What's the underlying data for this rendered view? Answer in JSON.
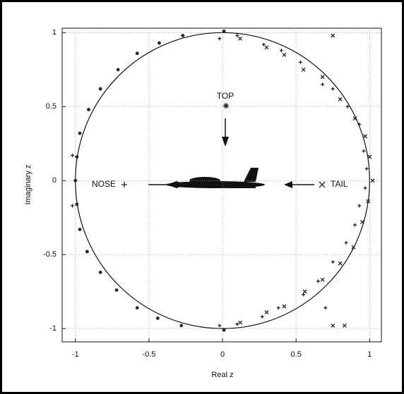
{
  "chart_data": {
    "type": "scatter",
    "x_label": "Real z",
    "y_label": "Imaginary z",
    "xlim": [
      -1.09,
      1.08
    ],
    "ylim": [
      -1.09,
      1.03
    ],
    "xticks": [
      -1,
      -0.5,
      0,
      0.5,
      1
    ],
    "yticks": [
      -1,
      -0.5,
      0,
      0.5,
      1
    ],
    "grid": true,
    "circle": {
      "center": [
        0,
        0
      ],
      "radius": 1
    },
    "series": [
      {
        "name": "NOSE",
        "marker": "plus",
        "color": "#222222",
        "x": [
          -0.02,
          0.1,
          0.28,
          0.4,
          0.53,
          0.68,
          0.75,
          0.85,
          0.93,
          0.96,
          0.98,
          0.97,
          0.93,
          0.9,
          0.84,
          0.75,
          0.65,
          0.55,
          0.38,
          0.27,
          0.1,
          -0.02,
          -1.02,
          -1.02,
          0.7
        ],
        "y": [
          0.96,
          0.98,
          0.92,
          0.88,
          0.8,
          0.65,
          0.62,
          0.5,
          0.38,
          0.2,
          0.08,
          -0.05,
          -0.17,
          -0.3,
          -0.42,
          -0.55,
          -0.68,
          -0.77,
          -0.86,
          -0.92,
          -0.97,
          -0.98,
          0.17,
          -0.17,
          -0.86
        ]
      },
      {
        "name": "TAIL",
        "marker": "cross",
        "color": "#222222",
        "x": [
          0.12,
          0.3,
          0.42,
          0.55,
          0.68,
          0.8,
          0.9,
          0.97,
          1.0,
          1.02,
          0.99,
          0.95,
          0.89,
          0.8,
          0.68,
          0.56,
          0.42,
          0.3,
          0.12,
          0.75,
          0.75,
          0.83
        ],
        "y": [
          0.96,
          0.9,
          0.85,
          0.75,
          0.7,
          0.55,
          0.42,
          0.3,
          0.16,
          0.0,
          -0.14,
          -0.28,
          -0.45,
          -0.56,
          -0.67,
          -0.75,
          -0.85,
          -0.89,
          -0.96,
          0.98,
          -0.98,
          -0.98
        ]
      },
      {
        "name": "TOP",
        "marker": "star",
        "color": "#222222",
        "x": [
          0.01,
          -0.27,
          -0.43,
          -0.58,
          -0.71,
          -0.83,
          -0.91,
          -0.97,
          -0.99,
          -1.0,
          -0.99,
          -0.97,
          -0.92,
          -0.83,
          -0.72,
          -0.58,
          -0.44,
          -0.28,
          0.01
        ],
        "y": [
          1.01,
          0.98,
          0.93,
          0.86,
          0.75,
          0.62,
          0.48,
          0.32,
          0.16,
          0.0,
          -0.16,
          -0.33,
          -0.48,
          -0.62,
          -0.74,
          -0.86,
          -0.93,
          -0.98,
          -1.01
        ]
      }
    ]
  }
}
